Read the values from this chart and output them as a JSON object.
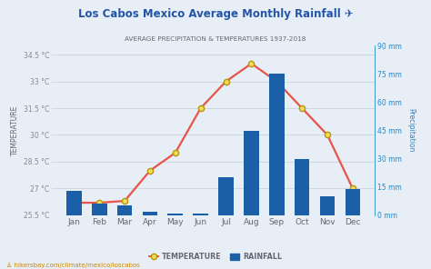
{
  "title": "Los Cabos Mexico Average Monthly Rainfall ✈",
  "subtitle": "AVERAGE PRECIPITATION & TEMPERATURES 1937-2018",
  "months": [
    "Jan",
    "Feb",
    "Mar",
    "Apr",
    "May",
    "Jun",
    "Jul",
    "Aug",
    "Sep",
    "Oct",
    "Nov",
    "Dec"
  ],
  "temperature": [
    26.2,
    26.2,
    26.3,
    28.0,
    29.0,
    31.5,
    33.0,
    34.0,
    33.0,
    31.5,
    30.0,
    27.0
  ],
  "rainfall": [
    13,
    6,
    5,
    2,
    1,
    1,
    20,
    45,
    75,
    30,
    10,
    14
  ],
  "temp_ylim": [
    25.5,
    35.0
  ],
  "rain_ylim": [
    0,
    90
  ],
  "temp_yticks": [
    25.5,
    27.0,
    28.5,
    30.0,
    31.5,
    33.0,
    34.5
  ],
  "rain_yticks": [
    0,
    15,
    30,
    45,
    60,
    75,
    90
  ],
  "temp_yticklabels": [
    "25.5 °C",
    "27 °C",
    "28.5 °C",
    "30 °C",
    "31.5 °C",
    "33 °C",
    "34.5 °C"
  ],
  "rain_yticklabels": [
    "0 mm",
    "15 mm",
    "30 mm",
    "45 mm",
    "60 mm",
    "75 mm",
    "90 mm"
  ],
  "bar_color": "#1a5fa8",
  "line_color": "#e8534a",
  "marker_face": "#f0dc60",
  "marker_edge": "#b8960a",
  "bg_color": "#e8eef5",
  "plot_bg_color": "#e8eef5",
  "grid_color": "#c8d4e0",
  "ylabel_left": "TEMPERATURE",
  "ylabel_right": "Precipitation",
  "legend_temp": "TEMPERATURE",
  "legend_rain": "RAINFALL",
  "footer": "♙ hikersbay.com/climate/mexico/loscabos",
  "title_color": "#2255aa",
  "subtitle_color": "#666677",
  "axis_label_color": "#666677",
  "right_axis_color": "#2288cc",
  "left_tick_color": "#888899",
  "footer_color": "#cc8800"
}
